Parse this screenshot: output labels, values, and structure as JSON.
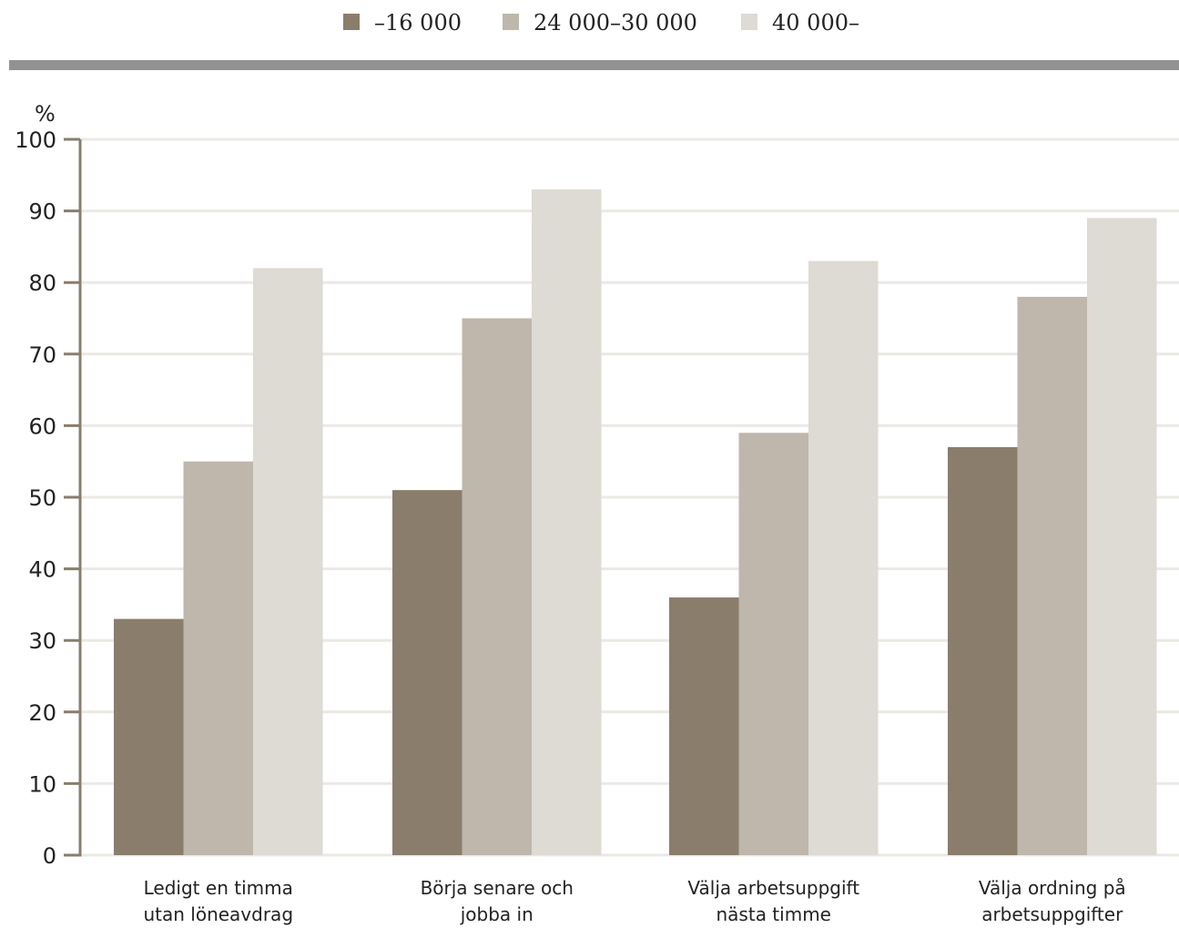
{
  "chart_data": {
    "type": "bar",
    "ylabel": "%",
    "ylim": [
      0,
      100
    ],
    "yticks": [
      0,
      10,
      20,
      30,
      40,
      50,
      60,
      70,
      80,
      90,
      100
    ],
    "grid": true,
    "legend_position": "top",
    "categories": [
      [
        "Ledigt en timma",
        "utan löneavdrag"
      ],
      [
        "Börja senare och",
        "jobba in"
      ],
      [
        "Välja arbetsuppgift",
        "nästa timme"
      ],
      [
        "Välja ordning på",
        "arbetsuppgifter"
      ]
    ],
    "series": [
      {
        "name": "–16 000",
        "color": "#8a7d6c",
        "values": [
          33,
          51,
          36,
          57
        ]
      },
      {
        "name": "24 000–30 000",
        "color": "#bfb7ac",
        "values": [
          55,
          75,
          59,
          78
        ]
      },
      {
        "name": "40 000–",
        "color": "#dedad4",
        "values": [
          82,
          93,
          83,
          89
        ]
      }
    ]
  },
  "colors": {
    "axis": "#8a7d6c",
    "gridline": "#ece9e4",
    "separator": "#929292"
  }
}
